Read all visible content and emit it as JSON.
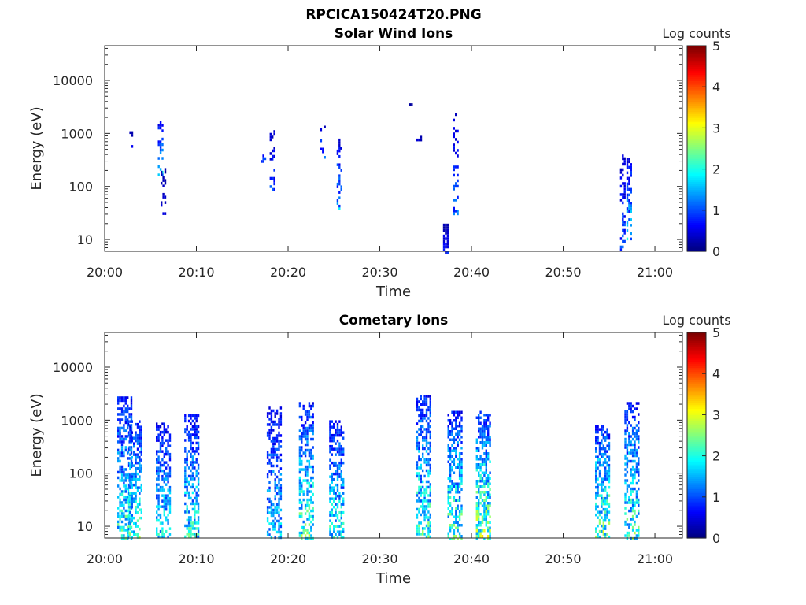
{
  "figure": {
    "suptitle": "RPCICA150424T20.PNG"
  },
  "chart_data": [
    {
      "type": "heatmap",
      "title": "Solar Wind Ions",
      "xlabel": "Time",
      "ylabel": "Energy (eV)",
      "yscale": "log",
      "ylim": [
        6,
        45000
      ],
      "x_ticks": [
        "20:00",
        "20:10",
        "20:20",
        "20:30",
        "20:40",
        "20:50",
        "21:00"
      ],
      "x_tick_minutes": [
        0,
        10,
        20,
        30,
        40,
        50,
        60
      ],
      "x_range_minutes": [
        0,
        63
      ],
      "y_ticks": [
        "10",
        "100",
        "1000",
        "10000"
      ],
      "y_tick_values": [
        10,
        100,
        1000,
        10000
      ],
      "colorbar": {
        "label": "Log counts",
        "range": [
          0,
          5
        ],
        "ticks": [
          "0",
          "1",
          "2",
          "3",
          "4",
          "5"
        ]
      },
      "bursts": [
        {
          "t": 2.8,
          "emin": 600,
          "emax": 1100,
          "peak": 0.7,
          "density": 0.25
        },
        {
          "t": 6.1,
          "emin": 170,
          "emax": 1700,
          "peak": 1.8,
          "density": 0.4
        },
        {
          "t": 6.4,
          "emin": 30,
          "emax": 250,
          "peak": 0.6,
          "density": 0.35
        },
        {
          "t": 18.3,
          "emin": 90,
          "emax": 1300,
          "peak": 1.0,
          "density": 0.35
        },
        {
          "t": 17.3,
          "emin": 300,
          "emax": 400,
          "peak": 1.7,
          "density": 0.6
        },
        {
          "t": 23.8,
          "emin": 300,
          "emax": 1400,
          "peak": 1.3,
          "density": 0.3
        },
        {
          "t": 25.6,
          "emin": 40,
          "emax": 800,
          "peak": 1.6,
          "density": 0.35
        },
        {
          "t": 33.5,
          "emin": 3400,
          "emax": 3700,
          "peak": 0.4,
          "density": 0.8
        },
        {
          "t": 34.3,
          "emin": 750,
          "emax": 900,
          "peak": 0.6,
          "density": 0.6
        },
        {
          "t": 37.2,
          "emin": 6,
          "emax": 20,
          "peak": 0.8,
          "density": 0.8
        },
        {
          "t": 38.3,
          "emin": 25,
          "emax": 2400,
          "peak": 1.2,
          "density": 0.35
        },
        {
          "t": 56.5,
          "emin": 6,
          "emax": 400,
          "peak": 1.3,
          "density": 0.35
        },
        {
          "t": 57.2,
          "emin": 10,
          "emax": 350,
          "peak": 1.8,
          "density": 0.5
        }
      ]
    },
    {
      "type": "heatmap",
      "title": "Cometary Ions",
      "xlabel": "Time",
      "ylabel": "Energy (eV)",
      "yscale": "log",
      "ylim": [
        6,
        45000
      ],
      "x_ticks": [
        "20:00",
        "20:10",
        "20:20",
        "20:30",
        "20:40",
        "20:50",
        "21:00"
      ],
      "x_tick_minutes": [
        0,
        10,
        20,
        30,
        40,
        50,
        60
      ],
      "x_range_minutes": [
        0,
        63
      ],
      "y_ticks": [
        "10",
        "100",
        "1000",
        "10000"
      ],
      "y_tick_values": [
        10,
        100,
        1000,
        10000
      ],
      "colorbar": {
        "label": "Log counts",
        "range": [
          0,
          5
        ],
        "ticks": [
          "0",
          "1",
          "2",
          "3",
          "4",
          "5"
        ]
      },
      "bursts": [
        {
          "t": 2.2,
          "emin": 6,
          "emax": 2800,
          "peak": 2.3,
          "density": 0.55
        },
        {
          "t": 3.3,
          "emin": 6,
          "emax": 1000,
          "peak": 2.4,
          "density": 0.55
        },
        {
          "t": 6.4,
          "emin": 6,
          "emax": 900,
          "peak": 2.0,
          "density": 0.55
        },
        {
          "t": 9.5,
          "emin": 6,
          "emax": 1300,
          "peak": 2.2,
          "density": 0.55
        },
        {
          "t": 18.5,
          "emin": 6,
          "emax": 1800,
          "peak": 1.8,
          "density": 0.5
        },
        {
          "t": 22.0,
          "emin": 6,
          "emax": 2200,
          "peak": 2.5,
          "density": 0.5
        },
        {
          "t": 25.3,
          "emin": 6,
          "emax": 1000,
          "peak": 2.2,
          "density": 0.55
        },
        {
          "t": 34.8,
          "emin": 6,
          "emax": 3000,
          "peak": 2.4,
          "density": 0.55
        },
        {
          "t": 38.2,
          "emin": 6,
          "emax": 1500,
          "peak": 2.5,
          "density": 0.55
        },
        {
          "t": 41.3,
          "emin": 6,
          "emax": 1500,
          "peak": 2.8,
          "density": 0.6
        },
        {
          "t": 54.3,
          "emin": 6,
          "emax": 800,
          "peak": 2.7,
          "density": 0.55
        },
        {
          "t": 57.5,
          "emin": 6,
          "emax": 2200,
          "peak": 2.4,
          "density": 0.55
        }
      ]
    }
  ]
}
